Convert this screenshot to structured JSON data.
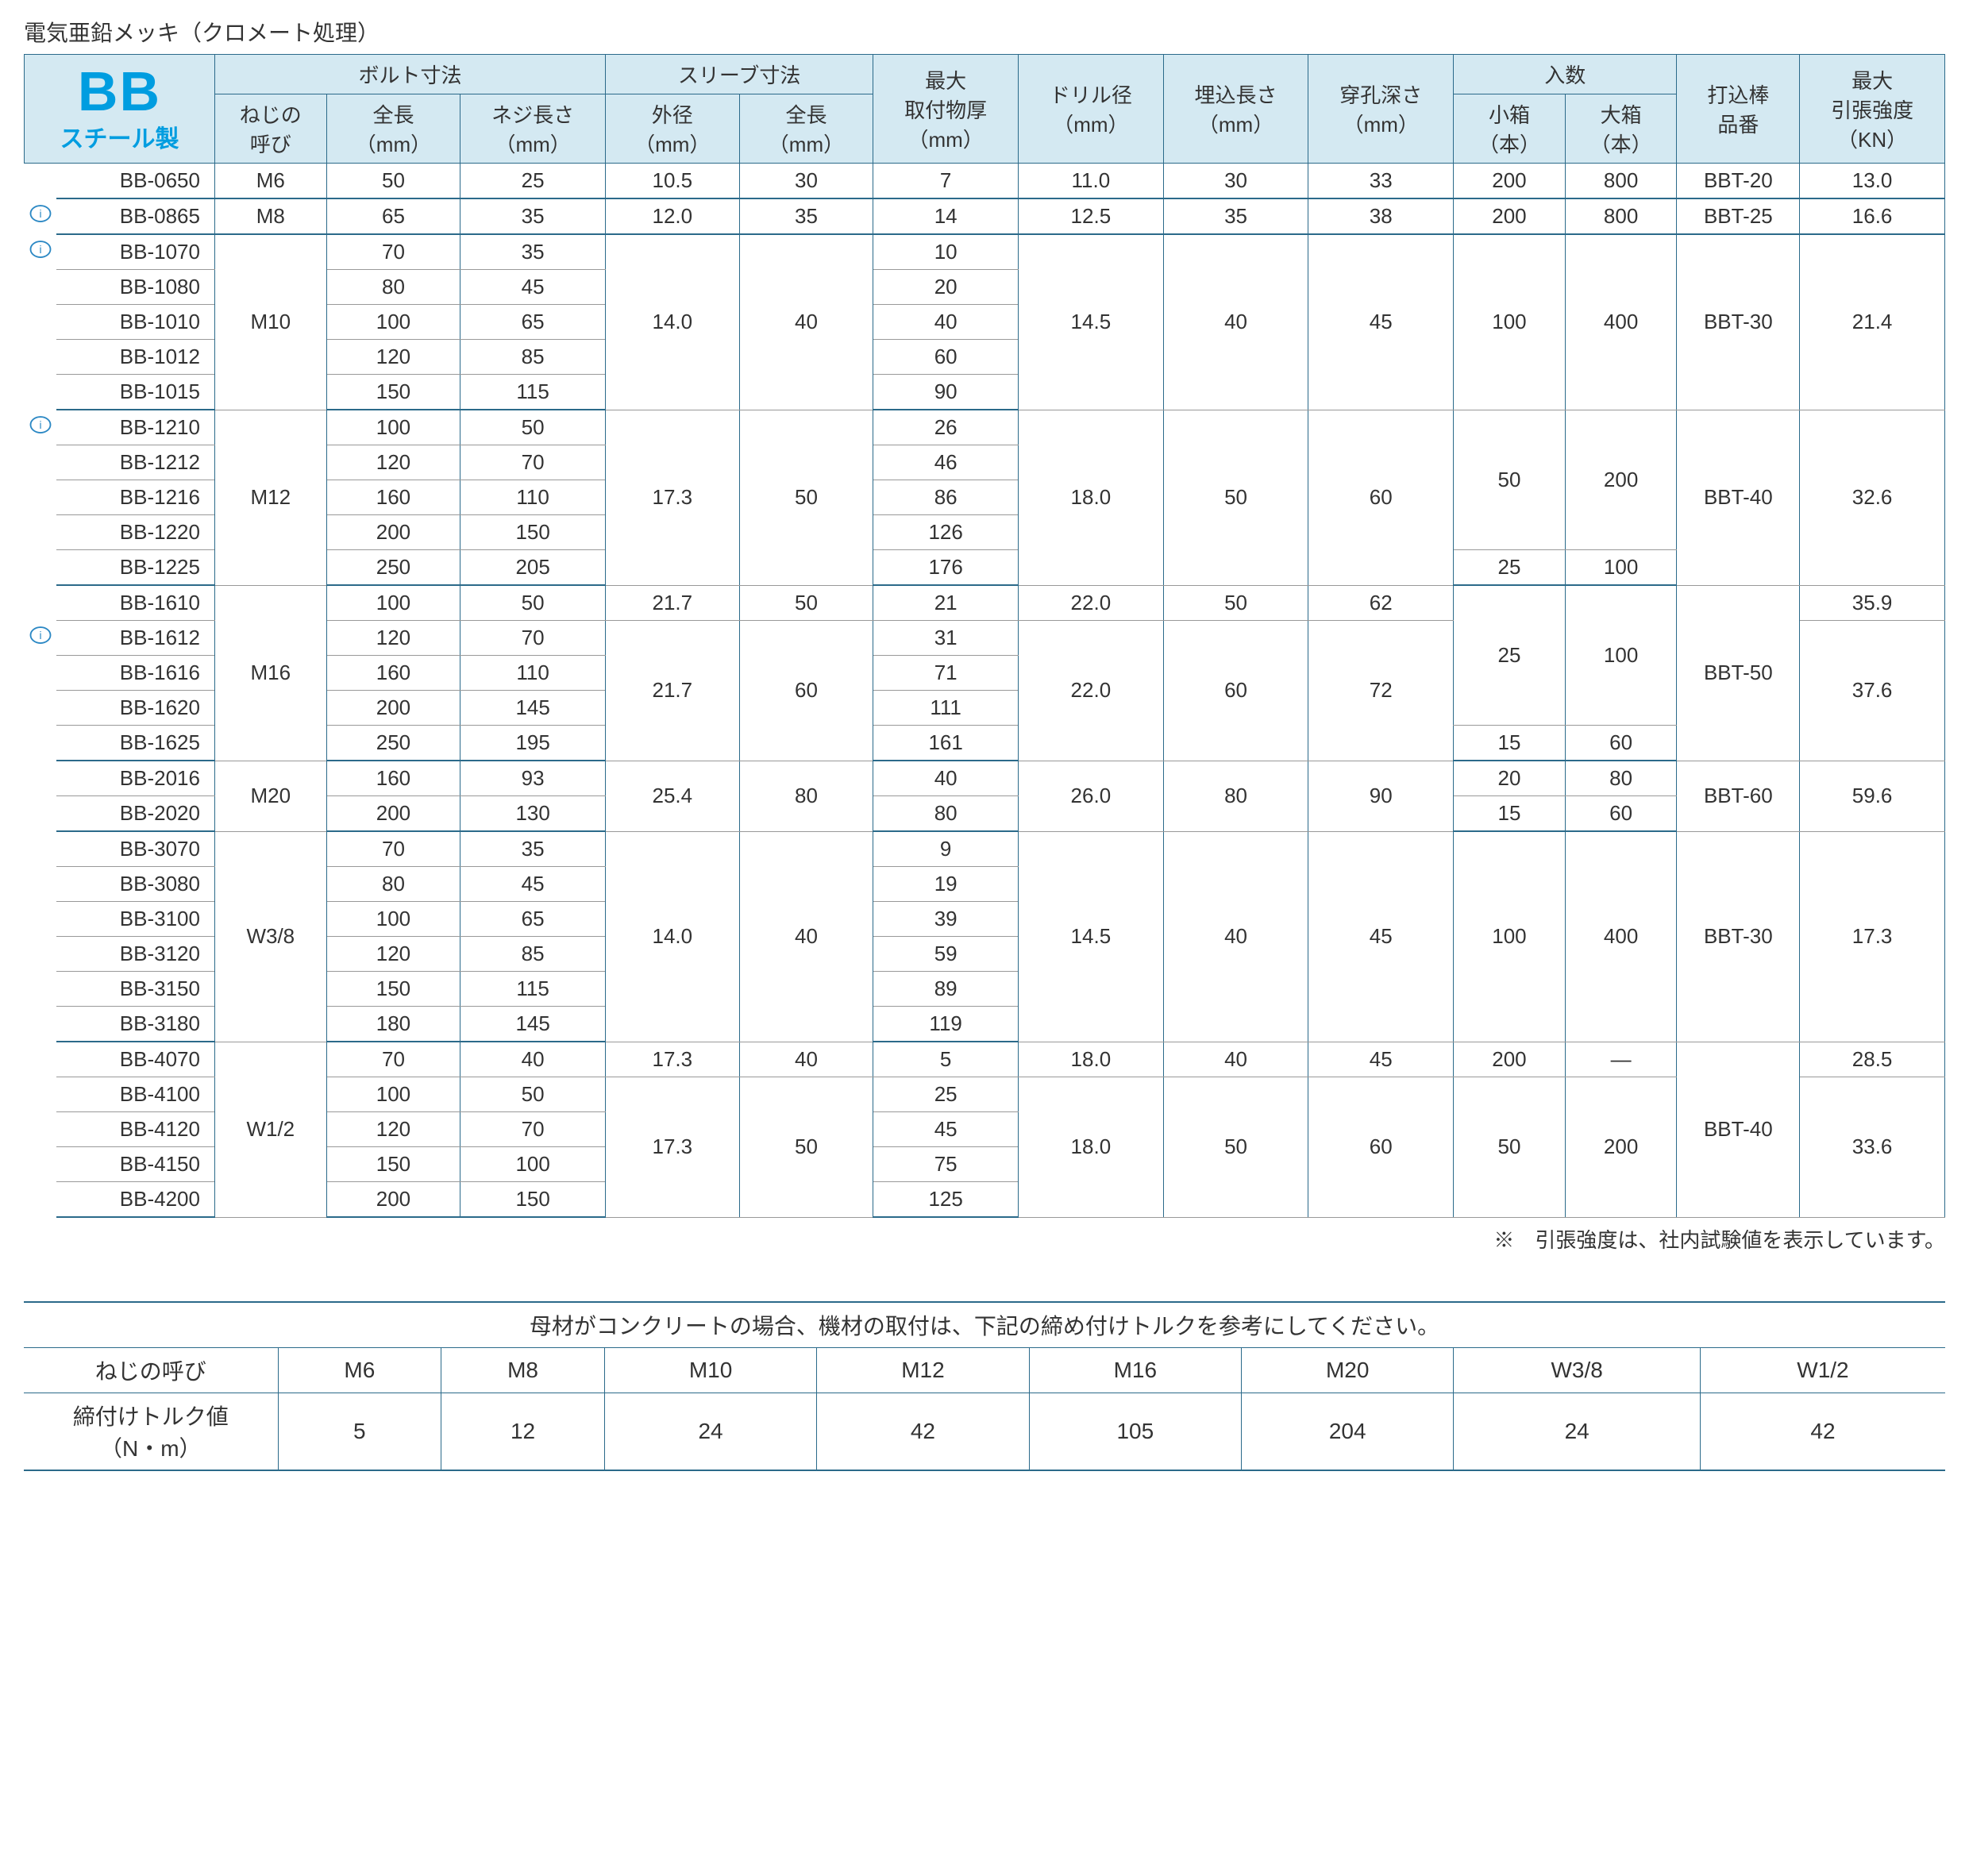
{
  "title_text": "電気亜鉛メッキ（クロメート処理）",
  "brand": {
    "bb": "BB",
    "sub": "スチール製"
  },
  "header": {
    "bolt": "ボルト寸法",
    "sleeve": "スリーブ寸法",
    "qty": "入数",
    "thread": "ねじの\n呼び",
    "total_len": "全長\n（mm）",
    "thread_len": "ネジ長さ\n（mm）",
    "od": "外径\n（mm）",
    "sleeve_len": "全長\n（mm）",
    "max_thick": "最大\n取付物厚\n（mm）",
    "drill": "ドリル径\n（mm）",
    "embed": "埋込長さ\n（mm）",
    "hole": "穿孔深さ\n（mm）",
    "small": "小箱\n（本）",
    "large": "大箱\n（本）",
    "rod": "打込棒\n品番",
    "tensile": "最大\n引張強度\n（KN）"
  },
  "rows": [
    {
      "badge": 0,
      "model": "BB-0650",
      "thread": "M6",
      "tl": 50,
      "nl": 25,
      "od": "10.5",
      "sl": 30,
      "mt": 7,
      "drill": "11.0",
      "emb": 30,
      "hole": 33,
      "sm": 200,
      "lg": 800,
      "rod": "BBT-20",
      "ten": "13.0",
      "group_end": 1,
      "span": {
        "thread": 1,
        "od": 1,
        "sl": 1,
        "drill": 1,
        "emb": 1,
        "hole": 1,
        "sm": 1,
        "lg": 1,
        "rod": 1,
        "ten": 1
      }
    },
    {
      "badge": 1,
      "model": "BB-0865",
      "thread": "M8",
      "tl": 65,
      "nl": 35,
      "od": "12.0",
      "sl": 35,
      "mt": 14,
      "drill": "12.5",
      "emb": 35,
      "hole": 38,
      "sm": 200,
      "lg": 800,
      "rod": "BBT-25",
      "ten": "16.6",
      "group_end": 1,
      "span": {
        "thread": 1,
        "od": 1,
        "sl": 1,
        "drill": 1,
        "emb": 1,
        "hole": 1,
        "sm": 1,
        "lg": 1,
        "rod": 1,
        "ten": 1
      }
    },
    {
      "badge": 1,
      "model": "BB-1070",
      "thread": "M10",
      "tl": 70,
      "nl": 35,
      "od": "14.0",
      "sl": 40,
      "mt": 10,
      "drill": "14.5",
      "emb": 40,
      "hole": 45,
      "sm": 100,
      "lg": 400,
      "rod": "BBT-30",
      "ten": "21.4",
      "span": {
        "thread": 5,
        "od": 5,
        "sl": 5,
        "drill": 5,
        "emb": 5,
        "hole": 5,
        "sm": 5,
        "lg": 5,
        "rod": 5,
        "ten": 5
      }
    },
    {
      "badge": 0,
      "model": "BB-1080",
      "tl": 80,
      "nl": 45,
      "mt": 20
    },
    {
      "badge": 0,
      "model": "BB-1010",
      "tl": 100,
      "nl": 65,
      "mt": 40
    },
    {
      "badge": 0,
      "model": "BB-1012",
      "tl": 120,
      "nl": 85,
      "mt": 60
    },
    {
      "badge": 0,
      "model": "BB-1015",
      "tl": 150,
      "nl": 115,
      "mt": 90,
      "group_end": 1
    },
    {
      "badge": 1,
      "model": "BB-1210",
      "thread": "M12",
      "tl": 100,
      "nl": 50,
      "od": "17.3",
      "sl": 50,
      "mt": 26,
      "drill": "18.0",
      "emb": 50,
      "hole": 60,
      "sm": 50,
      "lg": 200,
      "rod": "BBT-40",
      "ten": "32.6",
      "span": {
        "thread": 5,
        "od": 5,
        "sl": 5,
        "drill": 5,
        "emb": 5,
        "hole": 5,
        "sm": 4,
        "lg": 4,
        "rod": 5,
        "ten": 5
      }
    },
    {
      "badge": 0,
      "model": "BB-1212",
      "tl": 120,
      "nl": 70,
      "mt": 46
    },
    {
      "badge": 0,
      "model": "BB-1216",
      "tl": 160,
      "nl": 110,
      "mt": 86
    },
    {
      "badge": 0,
      "model": "BB-1220",
      "tl": 200,
      "nl": 150,
      "mt": 126
    },
    {
      "badge": 0,
      "model": "BB-1225",
      "tl": 250,
      "nl": 205,
      "mt": 176,
      "sm": 25,
      "lg": 100,
      "span": {
        "sm": 1,
        "lg": 1
      },
      "group_end": 1
    },
    {
      "badge": 0,
      "model": "BB-1610",
      "thread": "M16",
      "tl": 100,
      "nl": 50,
      "od": "21.7",
      "sl": 50,
      "mt": 21,
      "drill": "22.0",
      "emb": 50,
      "hole": 62,
      "sm": 25,
      "lg": 100,
      "rod": "BBT-50",
      "ten": "35.9",
      "span": {
        "thread": 5,
        "od": 1,
        "sl": 1,
        "drill": 1,
        "emb": 1,
        "hole": 1,
        "sm": 4,
        "lg": 4,
        "rod": 5,
        "ten": 1
      }
    },
    {
      "badge": 1,
      "model": "BB-1612",
      "tl": 120,
      "nl": 70,
      "od": "21.7",
      "sl": 60,
      "mt": 31,
      "drill": "22.0",
      "emb": 60,
      "hole": 72,
      "ten": "37.6",
      "span": {
        "od": 4,
        "sl": 4,
        "drill": 4,
        "emb": 4,
        "hole": 4,
        "ten": 4
      }
    },
    {
      "badge": 0,
      "model": "BB-1616",
      "tl": 160,
      "nl": 110,
      "mt": 71
    },
    {
      "badge": 0,
      "model": "BB-1620",
      "tl": 200,
      "nl": 145,
      "mt": 111
    },
    {
      "badge": 0,
      "model": "BB-1625",
      "tl": 250,
      "nl": 195,
      "mt": 161,
      "sm": 15,
      "lg": 60,
      "span": {
        "sm": 1,
        "lg": 1
      },
      "group_end": 1
    },
    {
      "badge": 0,
      "model": "BB-2016",
      "thread": "M20",
      "tl": 160,
      "nl": 93,
      "od": "25.4",
      "sl": 80,
      "mt": 40,
      "drill": "26.0",
      "emb": 80,
      "hole": 90,
      "sm": 20,
      "lg": 80,
      "rod": "BBT-60",
      "ten": "59.6",
      "span": {
        "thread": 2,
        "od": 2,
        "sl": 2,
        "drill": 2,
        "emb": 2,
        "hole": 2,
        "sm": 1,
        "lg": 1,
        "rod": 2,
        "ten": 2
      }
    },
    {
      "badge": 0,
      "model": "BB-2020",
      "tl": 200,
      "nl": 130,
      "mt": 80,
      "sm": 15,
      "lg": 60,
      "span": {
        "sm": 1,
        "lg": 1
      },
      "group_end": 1
    },
    {
      "badge": 0,
      "model": "BB-3070",
      "thread": "W3/8",
      "tl": 70,
      "nl": 35,
      "od": "14.0",
      "sl": 40,
      "mt": 9,
      "drill": "14.5",
      "emb": 40,
      "hole": 45,
      "sm": 100,
      "lg": 400,
      "rod": "BBT-30",
      "ten": "17.3",
      "span": {
        "thread": 6,
        "od": 6,
        "sl": 6,
        "drill": 6,
        "emb": 6,
        "hole": 6,
        "sm": 6,
        "lg": 6,
        "rod": 6,
        "ten": 6
      }
    },
    {
      "badge": 0,
      "model": "BB-3080",
      "tl": 80,
      "nl": 45,
      "mt": 19
    },
    {
      "badge": 0,
      "model": "BB-3100",
      "tl": 100,
      "nl": 65,
      "mt": 39
    },
    {
      "badge": 0,
      "model": "BB-3120",
      "tl": 120,
      "nl": 85,
      "mt": 59
    },
    {
      "badge": 0,
      "model": "BB-3150",
      "tl": 150,
      "nl": 115,
      "mt": 89
    },
    {
      "badge": 0,
      "model": "BB-3180",
      "tl": 180,
      "nl": 145,
      "mt": 119,
      "group_end": 1
    },
    {
      "badge": 0,
      "model": "BB-4070",
      "thread": "W1/2",
      "tl": 70,
      "nl": 40,
      "od": "17.3",
      "sl": 40,
      "mt": 5,
      "drill": "18.0",
      "emb": 40,
      "hole": 45,
      "sm": 200,
      "lg": "―",
      "rod": "BBT-40",
      "ten": "28.5",
      "span": {
        "thread": 5,
        "od": 1,
        "sl": 1,
        "drill": 1,
        "emb": 1,
        "hole": 1,
        "sm": 1,
        "lg": 1,
        "rod": 5,
        "ten": 1
      }
    },
    {
      "badge": 0,
      "model": "BB-4100",
      "tl": 100,
      "nl": 50,
      "od": "17.3",
      "sl": 50,
      "mt": 25,
      "drill": "18.0",
      "emb": 50,
      "hole": 60,
      "sm": 50,
      "lg": 200,
      "ten": "33.6",
      "span": {
        "od": 4,
        "sl": 4,
        "drill": 4,
        "emb": 4,
        "hole": 4,
        "sm": 4,
        "lg": 4,
        "ten": 4
      }
    },
    {
      "badge": 0,
      "model": "BB-4120",
      "tl": 120,
      "nl": 70,
      "mt": 45
    },
    {
      "badge": 0,
      "model": "BB-4150",
      "tl": 150,
      "nl": 100,
      "mt": 75
    },
    {
      "badge": 0,
      "model": "BB-4200",
      "tl": 200,
      "nl": 150,
      "mt": 125,
      "group_end": 1
    }
  ],
  "footnote": "※　引張強度は、社内試験値を表示しています。",
  "torque": {
    "caption": "母材がコンクリートの場合、機材の取付は、下記の締め付けトルクを参考にしてください。",
    "row_label_1": "ねじの呼び",
    "row_label_2": "締付けトルク値\n（N・m）",
    "sizes": [
      "M6",
      "M8",
      "M10",
      "M12",
      "M16",
      "M20",
      "W3/8",
      "W1/2"
    ],
    "values": [
      5,
      12,
      24,
      42,
      105,
      204,
      24,
      42
    ]
  },
  "colors": {
    "header_bg": "#d4e9f2",
    "border": "#2b6a8a",
    "brand": "#009de0",
    "thin_line": "#999"
  }
}
